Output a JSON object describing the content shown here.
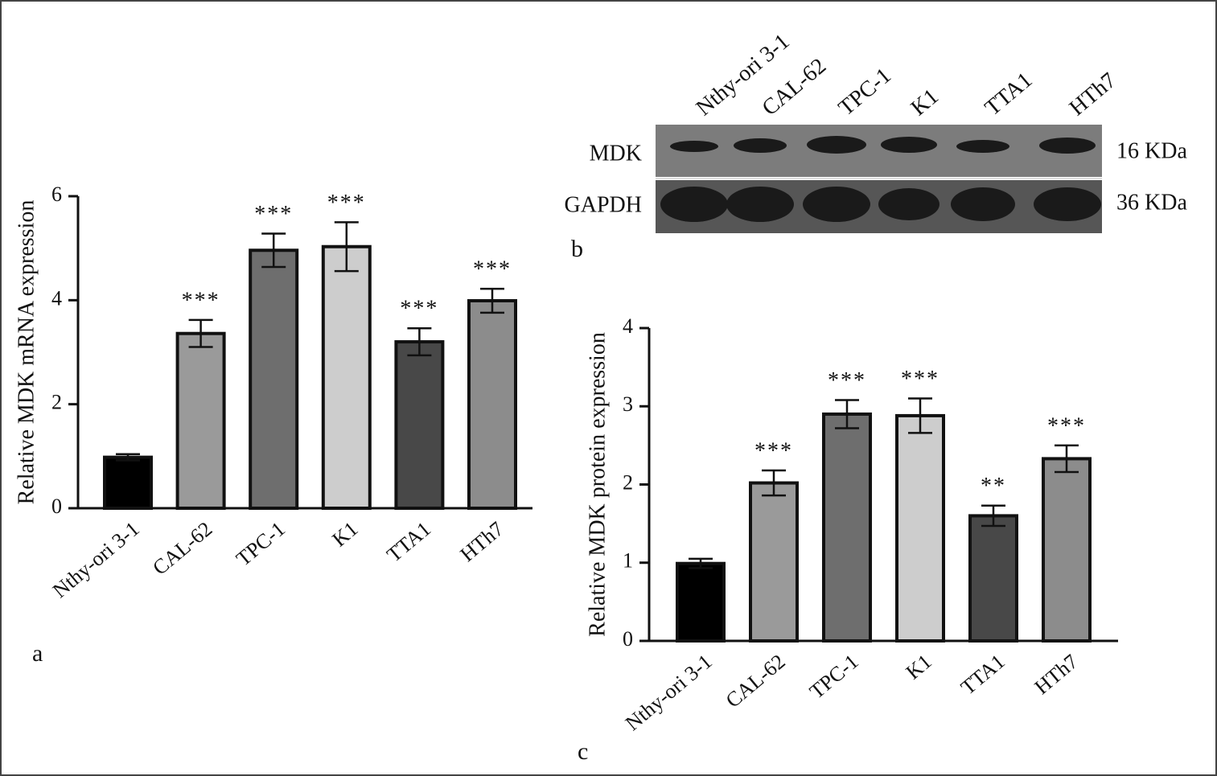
{
  "chart_data": [
    {
      "type": "bar",
      "label": "a",
      "y_label": "Relative MDK mRNA expression",
      "categories": [
        "Nthy-ori 3-1",
        "CAL-62",
        "TPC-1",
        "K1",
        "TTA1",
        "HTh7"
      ],
      "values": [
        0.98,
        3.36,
        4.96,
        5.03,
        3.2,
        3.99
      ],
      "errors": [
        0.06,
        0.26,
        0.32,
        0.47,
        0.26,
        0.23
      ],
      "significance": [
        null,
        "***",
        "***",
        "***",
        "***",
        "***"
      ],
      "colors": [
        "#000000",
        "#9a9a9a",
        "#6e6e6e",
        "#cdcdcd",
        "#484848",
        "#8c8c8c"
      ],
      "ylim": [
        0,
        6
      ],
      "yticks": [
        0,
        2,
        4,
        6
      ]
    },
    {
      "type": "bar",
      "label": "c",
      "y_label": "Relative MDK protein expression",
      "categories": [
        "Nthy-ori 3-1",
        "CAL-62",
        "TPC-1",
        "K1",
        "TTA1",
        "HTh7"
      ],
      "values": [
        0.99,
        2.02,
        2.9,
        2.88,
        1.6,
        2.33
      ],
      "errors": [
        0.06,
        0.16,
        0.18,
        0.22,
        0.13,
        0.17
      ],
      "significance": [
        null,
        "***",
        "***",
        "***",
        "**",
        "***"
      ],
      "colors": [
        "#000000",
        "#9a9a9a",
        "#6e6e6e",
        "#cdcdcd",
        "#484848",
        "#8c8c8c"
      ],
      "ylim": [
        0,
        4
      ],
      "yticks": [
        0,
        1,
        2,
        3,
        4
      ]
    }
  ],
  "blot": {
    "label": "b",
    "lanes": [
      "Nthy-ori 3-1",
      "CAL-62",
      "TPC-1",
      "K1",
      "TTA1",
      "HTh7"
    ],
    "rows": [
      {
        "protein": "MDK",
        "size": "16 KDa"
      },
      {
        "protein": "GAPDH",
        "size": "36 KDa"
      }
    ]
  }
}
